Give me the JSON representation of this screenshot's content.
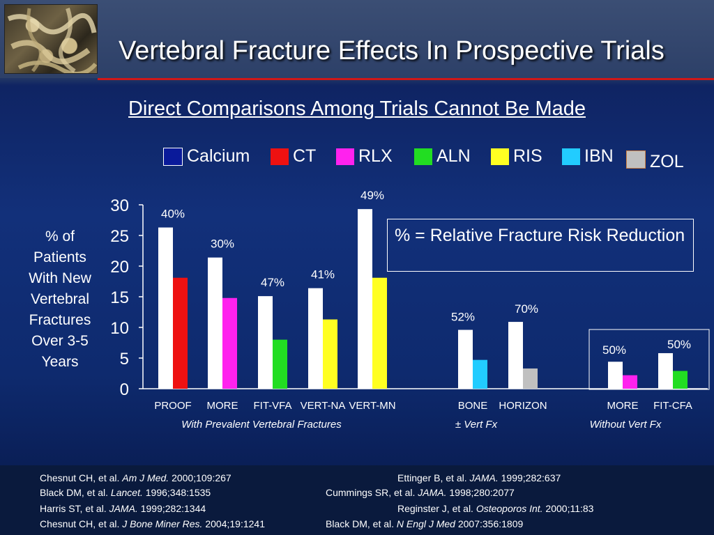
{
  "slide": {
    "title": "Vertebral Fracture Effects In Prospective Trials",
    "subtitle": "Direct Comparisons Among Trials Cannot Be Made",
    "ylabel_lines": [
      "% of",
      "Patients",
      "With New",
      "Vertebral",
      "Fractures",
      "Over 3-5",
      "Years"
    ],
    "note_text": "% = Relative Fracture Risk Reduction"
  },
  "legend": [
    {
      "name": "Calcium",
      "color": "#0a1a9a"
    },
    {
      "name": "CT",
      "color": "#ee1111"
    },
    {
      "name": "RLX",
      "color": "#ff22ee"
    },
    {
      "name": "ALN",
      "color": "#22dd22"
    },
    {
      "name": "RIS",
      "color": "#ffff22"
    },
    {
      "name": "IBN",
      "color": "#22ccff"
    },
    {
      "name": "ZOL",
      "color": "#c0c0c0"
    }
  ],
  "chart_data": {
    "type": "bar",
    "ylim": [
      0,
      30
    ],
    "yticks": [
      "0",
      "5",
      "10",
      "15",
      "20",
      "25",
      "30"
    ],
    "categories": [
      "PROOF",
      "MORE",
      "FIT-VFA",
      "VERT-NA",
      "VERT-MN",
      "BONE",
      "HORIZON",
      "MORE",
      "FIT-CFA"
    ],
    "groups": [
      {
        "category": "PROOF",
        "placebo": 26.3,
        "treatment": 18.1,
        "drug": "CT",
        "reduction": "40%"
      },
      {
        "category": "MORE",
        "placebo": 21.4,
        "treatment": 14.8,
        "drug": "RLX",
        "reduction": "30%"
      },
      {
        "category": "FIT-VFA",
        "placebo": 15.1,
        "treatment": 8.0,
        "drug": "ALN",
        "reduction": "47%"
      },
      {
        "category": "VERT-NA",
        "placebo": 16.4,
        "treatment": 11.3,
        "drug": "RIS",
        "reduction": "41%"
      },
      {
        "category": "VERT-MN",
        "placebo": 29.3,
        "treatment": 18.1,
        "drug": "RIS",
        "reduction": "49%"
      },
      {
        "category": "BONE",
        "placebo": 9.6,
        "treatment": 4.7,
        "drug": "IBN",
        "reduction": "52%"
      },
      {
        "category": "HORIZON",
        "placebo": 10.9,
        "treatment": 3.3,
        "drug": "ZOL",
        "reduction": "70%"
      },
      {
        "category": "MORE",
        "placebo": 4.4,
        "treatment": 2.2,
        "drug": "RLX",
        "reduction": "50%"
      },
      {
        "category": "FIT-CFA",
        "placebo": 5.8,
        "treatment": 2.9,
        "drug": "ALN",
        "reduction": "50%"
      }
    ],
    "placebo_color": "#ffffff",
    "group_labels": [
      {
        "text": "With Prevalent Vertebral Fractures"
      },
      {
        "text": "± Vert Fx"
      },
      {
        "text": "Without Vert Fx"
      }
    ]
  },
  "references": [
    {
      "pre": "Chesnut CH, et al. ",
      "journal": "Am J Med.",
      "post": " 2000;109:267"
    },
    {
      "pre": "Black DM, et al. ",
      "journal": "Lancet.",
      "post": " 1996;348:1535"
    },
    {
      "pre": "Harris ST, et al. ",
      "journal": "JAMA.",
      "post": " 1999;282:1344"
    },
    {
      "pre": "Chesnut CH, et al. ",
      "journal": "J Bone Miner Res.",
      "post": " 2004;19:1241"
    },
    {
      "pre": "Ettinger B, et al. ",
      "journal": "JAMA.",
      "post": " 1999;282:637"
    },
    {
      "pre": "Cummings SR, et al. ",
      "journal": "JAMA.",
      "post": " 1998;280:2077"
    },
    {
      "pre": "Reginster J, et al. ",
      "journal": "Osteoporos Int.",
      "post": " 2000;11:83"
    },
    {
      "pre": "Black DM, et al. ",
      "journal": "N Engl J Med",
      "post": " 2007:356:1809"
    }
  ]
}
